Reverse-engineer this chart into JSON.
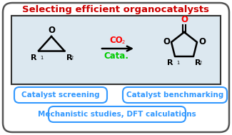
{
  "title": "Selecting efficient organocatalysts",
  "title_color": "#cc0000",
  "outer_bg": "#ffffff",
  "inner_bg": "#dce8f0",
  "blue_box_color": "#3399ff",
  "co2_color": "#ff0000",
  "cata_color": "#00cc00",
  "btn1": "Catalyst screening",
  "btn2": "Catalyst benchmarking",
  "btn3": "Mechanistic studies, DFT calculations"
}
